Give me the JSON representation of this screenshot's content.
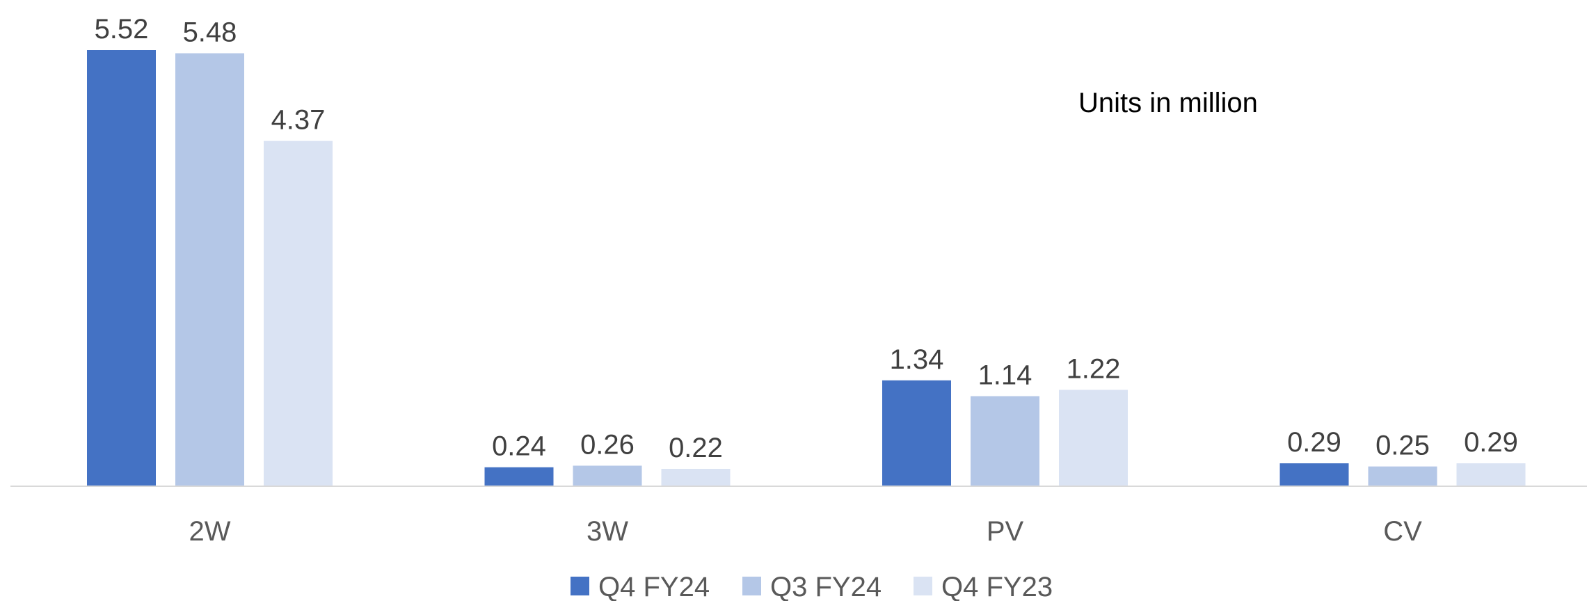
{
  "chart_data": {
    "type": "bar",
    "categories": [
      "2W",
      "3W",
      "PV",
      "CV"
    ],
    "series": [
      {
        "name": "Q4 FY24",
        "color": "#4472C4",
        "values": [
          5.52,
          0.24,
          1.34,
          0.29
        ]
      },
      {
        "name": "Q3 FY24",
        "color": "#B4C7E7",
        "values": [
          5.48,
          0.26,
          1.14,
          0.25
        ]
      },
      {
        "name": "Q4 FY23",
        "color": "#DAE3F3",
        "values": [
          4.37,
          0.22,
          1.22,
          0.29
        ]
      }
    ],
    "annotation": "Units in million",
    "ylim": [
      0,
      5.52
    ],
    "grid": false,
    "legend_position": "bottom"
  }
}
